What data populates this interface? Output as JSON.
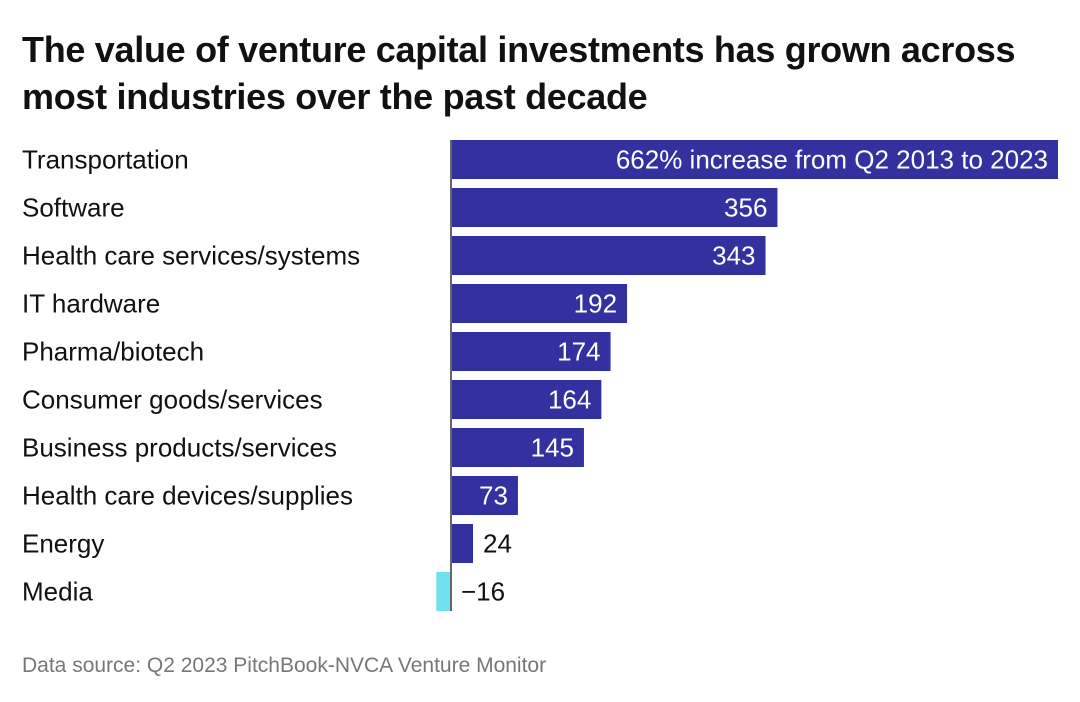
{
  "title": "The value of venture capital investments has grown across most industries over the past decade",
  "source": "Data source: Q2 2023 PitchBook-NVCA Venture Monitor",
  "colors": {
    "positive": "#3330a0",
    "negative": "#6fe1ee",
    "axis": "#666666"
  },
  "chart_data": {
    "type": "bar",
    "orientation": "horizontal",
    "title": "The value of venture capital investments has grown across most industries over the past decade",
    "categories": [
      "Transportation",
      "Software",
      "Health care services/systems",
      "IT hardware",
      "Pharma/biotech",
      "Consumer goods/services",
      "Business products/services",
      "Health care devices/supplies",
      "Energy",
      "Media"
    ],
    "values": [
      662,
      356,
      343,
      192,
      174,
      164,
      145,
      73,
      24,
      -16
    ],
    "data_labels": [
      "662% increase from Q2 2013 to 2023",
      "356",
      "343",
      "192",
      "174",
      "164",
      "145",
      "73",
      "24",
      "−16"
    ],
    "unit": "%",
    "grid": false,
    "legend": "none"
  }
}
